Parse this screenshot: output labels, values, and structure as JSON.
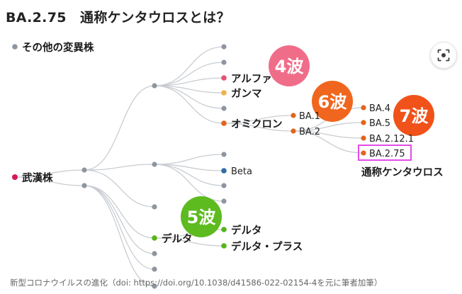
{
  "title": "BA.2.75　通称ケンタウロスとは？",
  "caption": "新型コロナウイルスの進化（doi: https://doi.org/10.1038/d41586-022-02154-4を元に筆者加筆）",
  "legend_label": "その他の変異株",
  "labels": {
    "root": "武漢株",
    "alpha": "アルファ",
    "gamma": "ガンマ",
    "omicron": "オミクロン",
    "ba1": "BA.1",
    "ba2": "BA.2",
    "ba4": "BA.4",
    "ba5": "BA.5",
    "ba2121": "BA.2.12.1",
    "ba275": "BA.2.75",
    "beta": "Beta",
    "delta_mid": "デルタ",
    "delta": "デルタ",
    "delta_plus": "デルタ・プラス",
    "centaurus": "通称ケンタウロス"
  },
  "waves": {
    "w4": "4波",
    "w5": "5波",
    "w6": "6波",
    "w7": "7波"
  },
  "colors": {
    "root": "#d6165a",
    "other": "#8d96a0",
    "alpha": "#e84f74",
    "gamma": "#f0b24b",
    "omicron": "#e2641b",
    "beta": "#2f6ea5",
    "delta": "#55b519",
    "wave4": "#f06d8a",
    "wave6": "#f0661e",
    "wave7": "#f0521a",
    "wave5": "#5dbb20",
    "highlight": "#e44ce4",
    "edge": "#c9cdd2"
  },
  "icons": {
    "lens": "lens-search-icon"
  }
}
